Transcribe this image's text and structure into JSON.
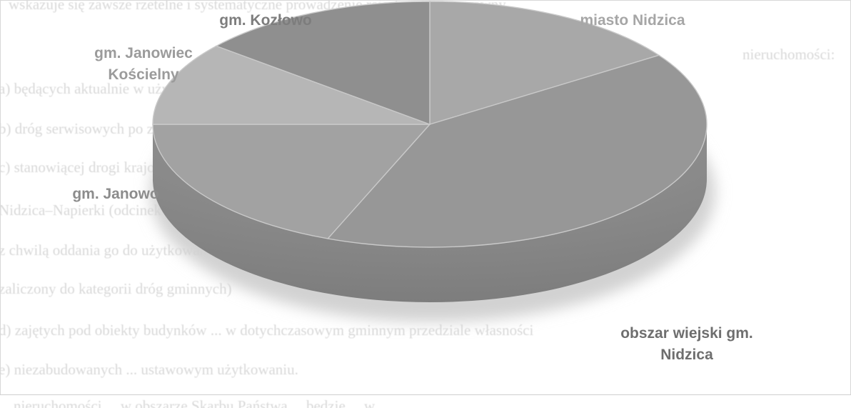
{
  "page": {
    "background_text": [
      "wskazuje się zawsze rzetelne i systematyczne prowadzenie rejestru stanów prawny",
      "nieruchomości:",
      "a)   będących aktualnie w użytkowaniu Gminy Nidzica (droga ekspresowa przy S-7)",
      "b)   dróg serwisowych po zakończeniu budowy drogi S-7 na odcinku Nidzica–Napierki",
      "c)   stanowiącej drogi krajowej nr 7, które zostaną zastąpione drogą ekspresową nr 7 na odcinku",
      "      Nidzica–Napierki (odcinek drogi zastąpiony nowo wybudowanym odcinkiem drogi",
      "      z chwilą oddania go do użytkowania zostaje pozbawiony dotychczasowej kategorii",
      "      zaliczony do kategorii dróg gminnych)",
      "d)   zajętych pod obiekty budynków ... w dotychczasowym gminnym przedziale własności",
      "e)   niezabudowanych ... ustawowym użytkowaniu.",
      "      ... nieruchomości ... w obszarze Skarbu Państwa ... będzie ... w"
    ]
  },
  "chart_data": {
    "type": "pie",
    "title": "",
    "style": "3d",
    "slices": [
      {
        "label": "miasto Nidzica",
        "value": 15.5,
        "color": "#a8a8a8",
        "label_color": "#a6a6a6"
      },
      {
        "label": "obszar wiejski gm. Nidzica",
        "value": 40.5,
        "color": "#979797",
        "label_color": "#6e6e6e"
      },
      {
        "label": "gm. Janowo",
        "value": 19,
        "color": "#a2a2a2",
        "label_color": "#8c8c8c"
      },
      {
        "label": "gm. Janowiec Kościelny",
        "value": 11,
        "color": "#b6b6b6",
        "label_color": "#9b9b9b"
      },
      {
        "label": "gm. Kozłowo",
        "value": 14,
        "color": "#8f8f8f",
        "label_color": "#7d7d7d"
      }
    ],
    "legend": "none"
  }
}
